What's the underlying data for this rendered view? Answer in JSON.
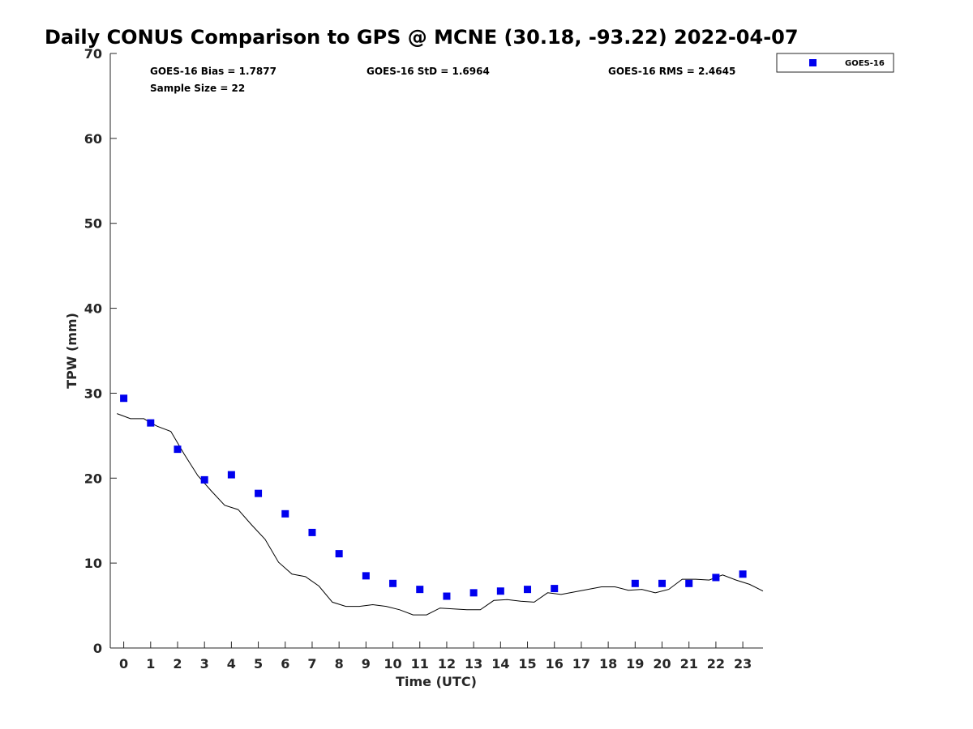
{
  "chart_data": {
    "type": "scatter",
    "title": "Daily CONUS Comparison to GPS @ MCNE (30.18, -93.22) 2022-04-07",
    "xlabel": "Time (UTC)",
    "ylabel": "TPW (mm)",
    "xlim": [
      -0.5,
      23.75
    ],
    "ylim": [
      0,
      70
    ],
    "x_ticks": [
      0,
      1,
      2,
      3,
      4,
      5,
      6,
      7,
      8,
      9,
      10,
      11,
      12,
      13,
      14,
      15,
      16,
      17,
      18,
      19,
      20,
      21,
      22,
      23
    ],
    "y_ticks": [
      0,
      10,
      20,
      30,
      40,
      50,
      60,
      70
    ],
    "grid": false,
    "legend_position": "top-right, outside plot",
    "stats": {
      "bias": "GOES-16 Bias = 1.7877",
      "std": "GOES-16 StD = 1.6964",
      "rms": "GOES-16 RMS = 2.4645",
      "sample": "Sample Size = 22"
    },
    "series": [
      {
        "name": "GOES-16",
        "kind": "scatter",
        "marker": "square",
        "color": "#0000ee",
        "x": [
          0,
          1,
          2,
          3,
          4,
          5,
          6,
          7,
          8,
          9,
          10,
          11,
          12,
          13,
          14,
          15,
          16,
          19,
          20,
          21,
          22,
          23
        ],
        "y": [
          29.4,
          26.5,
          23.4,
          19.8,
          20.4,
          18.2,
          15.8,
          13.6,
          11.1,
          8.5,
          7.6,
          6.9,
          6.1,
          6.5,
          6.7,
          6.9,
          7.0,
          7.6,
          7.6,
          7.6,
          8.3,
          8.7
        ]
      },
      {
        "kind": "line",
        "color": "#000000",
        "x": [
          -0.25,
          0.25,
          0.75,
          1.0,
          1.25,
          1.75,
          2.25,
          2.75,
          3.25,
          3.75,
          4.25,
          4.75,
          5.25,
          5.75,
          6.25,
          6.75,
          7.25,
          7.75,
          8.25,
          8.75,
          9.25,
          9.75,
          10.25,
          10.75,
          11.25,
          11.75,
          12.25,
          12.75,
          13.25,
          13.75,
          14.25,
          14.75,
          15.25,
          15.75,
          16.25,
          16.75,
          17.25,
          17.75,
          18.25,
          18.75,
          19.25,
          19.75,
          20.25,
          20.75,
          21.25,
          21.75,
          22.25,
          22.75,
          23.25,
          23.75
        ],
        "y": [
          27.6,
          27.0,
          27.0,
          26.5,
          26.1,
          25.5,
          22.8,
          20.3,
          18.5,
          16.8,
          16.3,
          14.5,
          12.8,
          10.1,
          8.7,
          8.4,
          7.3,
          5.4,
          4.9,
          4.9,
          5.1,
          4.9,
          4.5,
          3.9,
          3.9,
          4.7,
          4.6,
          4.5,
          4.5,
          5.6,
          5.7,
          5.5,
          5.4,
          6.5,
          6.3,
          6.6,
          6.9,
          7.2,
          7.2,
          6.8,
          6.9,
          6.5,
          6.9,
          8.1,
          8.1,
          8.0,
          8.6,
          8.0,
          7.5,
          6.7
        ]
      }
    ]
  }
}
